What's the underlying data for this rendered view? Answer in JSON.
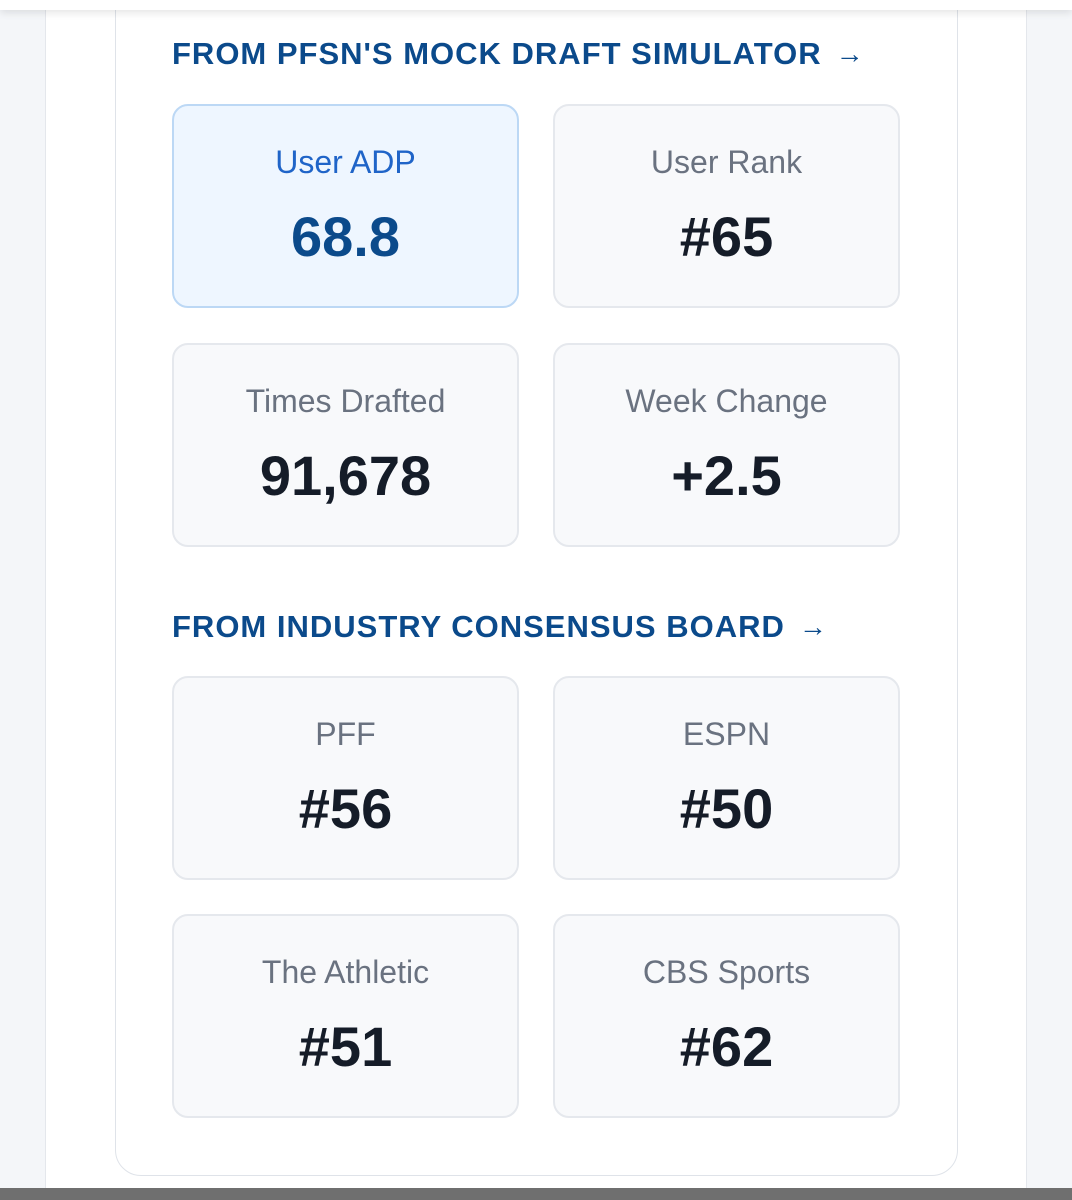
{
  "colors": {
    "heading": "#0b4a8b",
    "highlight_label": "#1f64c8",
    "highlight_bg": "#eef6ff",
    "value_dark": "#151c28",
    "label_gray": "#6a7280"
  },
  "simulator": {
    "heading": "FROM PFSN'S MOCK DRAFT SIMULATOR",
    "arrow": "→",
    "stats": [
      {
        "label": "User ADP",
        "value": "68.8"
      },
      {
        "label": "User Rank",
        "value": "#65"
      },
      {
        "label": "Times Drafted",
        "value": "91,678"
      },
      {
        "label": "Week Change",
        "value": "+2.5"
      }
    ]
  },
  "consensus": {
    "heading": "FROM INDUSTRY CONSENSUS BOARD",
    "arrow": "→",
    "stats": [
      {
        "label": "PFF",
        "value": "#56"
      },
      {
        "label": "ESPN",
        "value": "#50"
      },
      {
        "label": "The Athletic",
        "value": "#51"
      },
      {
        "label": "CBS Sports",
        "value": "#62"
      }
    ]
  }
}
